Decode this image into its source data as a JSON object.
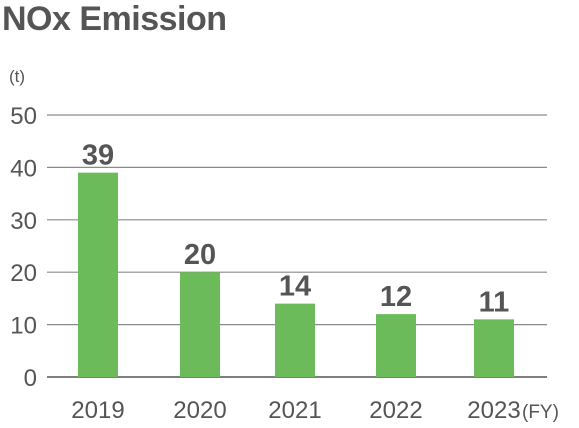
{
  "chart_data": {
    "type": "bar",
    "title": "NOx Emission",
    "ylabel": "(t)",
    "xlabel": "(FY)",
    "categories": [
      "2019",
      "2020",
      "2021",
      "2022",
      "2023"
    ],
    "values": [
      39,
      20,
      14,
      12,
      11
    ],
    "ylim": [
      0,
      50
    ],
    "yticks": [
      0,
      10,
      20,
      30,
      40,
      50
    ],
    "grid": true,
    "bar_color": "#6bbb5a",
    "text_color": "#555555",
    "data_labels": true
  }
}
